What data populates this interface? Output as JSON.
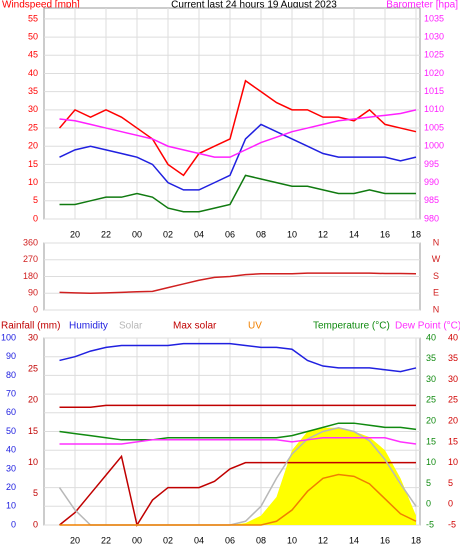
{
  "chart_data": [
    {
      "type": "line",
      "title": "Current last 24 hours 19 August 2023",
      "y_label": "Windspeed [mph]",
      "y2_label": "Barometer [hpa]",
      "categories": [
        null,
        "20",
        null,
        "22",
        null,
        "00",
        null,
        "02",
        null,
        "04",
        null,
        "06",
        null,
        "08",
        null,
        "10",
        null,
        "12",
        null,
        "14",
        null,
        "16",
        null,
        "18"
      ],
      "ylim": [
        0,
        58
      ],
      "yticks": [
        0,
        5,
        10,
        15,
        20,
        25,
        30,
        35,
        40,
        45,
        50,
        55
      ],
      "y2lim": [
        980,
        1038
      ],
      "y2ticks": [
        980,
        985,
        990,
        995,
        1000,
        1005,
        1010,
        1015,
        1020,
        1025,
        1030,
        1035
      ],
      "grid": true,
      "series": [
        {
          "color": "#ff0000",
          "values": [
            25,
            30,
            28,
            30,
            28,
            25,
            22,
            15,
            12,
            18,
            20,
            22,
            38,
            35,
            32,
            30,
            30,
            28,
            28,
            27,
            30,
            26,
            25,
            24
          ]
        },
        {
          "color": "#2020e0",
          "values": [
            17,
            19,
            20,
            19,
            18,
            17,
            15,
            10,
            8,
            8,
            10,
            12,
            22,
            26,
            24,
            22,
            20,
            18,
            17,
            17,
            17,
            17,
            16,
            17
          ]
        },
        {
          "color": "#107a10",
          "values": [
            4,
            4,
            5,
            6,
            6,
            7,
            6,
            3,
            2,
            2,
            3,
            4,
            12,
            11,
            10,
            9,
            9,
            8,
            7,
            7,
            8,
            7,
            7,
            7
          ]
        },
        {
          "color": "#ff20ff",
          "axis": "y2",
          "values": [
            1007.5,
            1007,
            1006,
            1005,
            1004,
            1003,
            1002,
            1000,
            999,
            998,
            997,
            997,
            999,
            1001,
            1002.5,
            1004,
            1005,
            1006,
            1007,
            1007.5,
            1008,
            1008.5,
            1009,
            1010
          ]
        }
      ]
    },
    {
      "type": "line",
      "ylim": [
        0,
        360
      ],
      "yticks": [
        0,
        90,
        180,
        270,
        360
      ],
      "y2ticks": [
        {
          "value": 0,
          "label": "N"
        },
        {
          "value": 90,
          "label": "E"
        },
        {
          "value": 180,
          "label": "S"
        },
        {
          "value": 270,
          "label": "W"
        },
        {
          "value": 360,
          "label": "N"
        }
      ],
      "grid": true,
      "series": [
        {
          "color": "#d02020",
          "values": [
            95,
            92,
            90,
            92,
            95,
            98,
            100,
            120,
            140,
            160,
            175,
            180,
            190,
            195,
            195,
            195,
            198,
            198,
            198,
            198,
            198,
            196,
            196,
            195
          ]
        }
      ]
    },
    {
      "type": "line",
      "categories": [
        null,
        "20",
        null,
        "22",
        null,
        "00",
        null,
        "02",
        null,
        "04",
        null,
        "06",
        null,
        "08",
        null,
        "10",
        null,
        "12",
        null,
        "14",
        null,
        "16",
        null,
        "18"
      ],
      "ylim": [
        0,
        100
      ],
      "yticks": [
        0,
        10,
        20,
        30,
        40,
        50,
        60,
        70,
        80,
        90,
        100
      ],
      "rain_lim": [
        0,
        30
      ],
      "rain_ticks": [
        0,
        5,
        10,
        15,
        20,
        25,
        30
      ],
      "y2lim": [
        -5,
        40
      ],
      "y2ticks": [
        -5,
        0,
        5,
        10,
        15,
        20,
        25,
        30,
        35,
        40
      ],
      "dew_lim": [
        -5,
        40
      ],
      "dew_ticks": [
        -5,
        0,
        5,
        10,
        15,
        20,
        25,
        30,
        35,
        40
      ],
      "grid": true,
      "series": [
        {
          "color": "#ffff00",
          "fill": true,
          "values": [
            0,
            0,
            0,
            0,
            0,
            0,
            0,
            0,
            0,
            0,
            0,
            0,
            1,
            5,
            15,
            40,
            50,
            52,
            52,
            50,
            47,
            40,
            25,
            5
          ]
        },
        {
          "name": "Rainfall (mm)",
          "color": "#c00000",
          "axis": "rain",
          "values": [
            0,
            2,
            5,
            8,
            11,
            0,
            4,
            6,
            6,
            6,
            7,
            9,
            10,
            10,
            10,
            10,
            10,
            10,
            10,
            10,
            10,
            10,
            10,
            10
          ]
        },
        {
          "name": "Humidity",
          "color": "#2020e0",
          "values": [
            88,
            90,
            93,
            95,
            96,
            96,
            96,
            96,
            97,
            97,
            97,
            97,
            96,
            95,
            95,
            94,
            88,
            85,
            84,
            84,
            84,
            83,
            82,
            84
          ]
        },
        {
          "name": "Solar",
          "color": "#b8b8b8",
          "values": [
            20,
            8,
            0,
            0,
            0,
            0,
            0,
            0,
            0,
            0,
            0,
            0,
            2,
            10,
            25,
            38,
            46,
            50,
            52,
            50,
            45,
            35,
            22,
            10
          ]
        },
        {
          "name": "Max solar",
          "color": "#c00000",
          "values": [
            63,
            63,
            63,
            64,
            64,
            64,
            64,
            64,
            64,
            64,
            64,
            64,
            64,
            64,
            64,
            64,
            64,
            64,
            64,
            64,
            64,
            64,
            64,
            64
          ]
        },
        {
          "name": "UV",
          "color": "#f08000",
          "values": [
            0,
            0,
            0,
            0,
            0,
            0,
            0,
            0,
            0,
            0,
            0,
            0,
            0,
            0,
            2,
            8,
            18,
            25,
            27,
            26,
            22,
            14,
            6,
            2
          ]
        },
        {
          "name": "Temperature (°C)",
          "color": "#108a10",
          "axis": "y2",
          "values": [
            17.5,
            17,
            16.5,
            16,
            15.5,
            15.5,
            15.5,
            16,
            16,
            16,
            16,
            16,
            16,
            16,
            16,
            16.5,
            17.5,
            18.5,
            19.5,
            19.5,
            19,
            18.5,
            18.5,
            18
          ]
        },
        {
          "name": "Dew Point (°C)",
          "color": "#ff30ff",
          "axis": "dew",
          "values": [
            14.5,
            14.5,
            14.5,
            14.5,
            14.5,
            15,
            15.5,
            15.5,
            15.5,
            15.5,
            15.5,
            15.5,
            15.5,
            15.5,
            15.5,
            15,
            15.5,
            16,
            16,
            16,
            16,
            16,
            15,
            14.5
          ]
        }
      ]
    }
  ]
}
